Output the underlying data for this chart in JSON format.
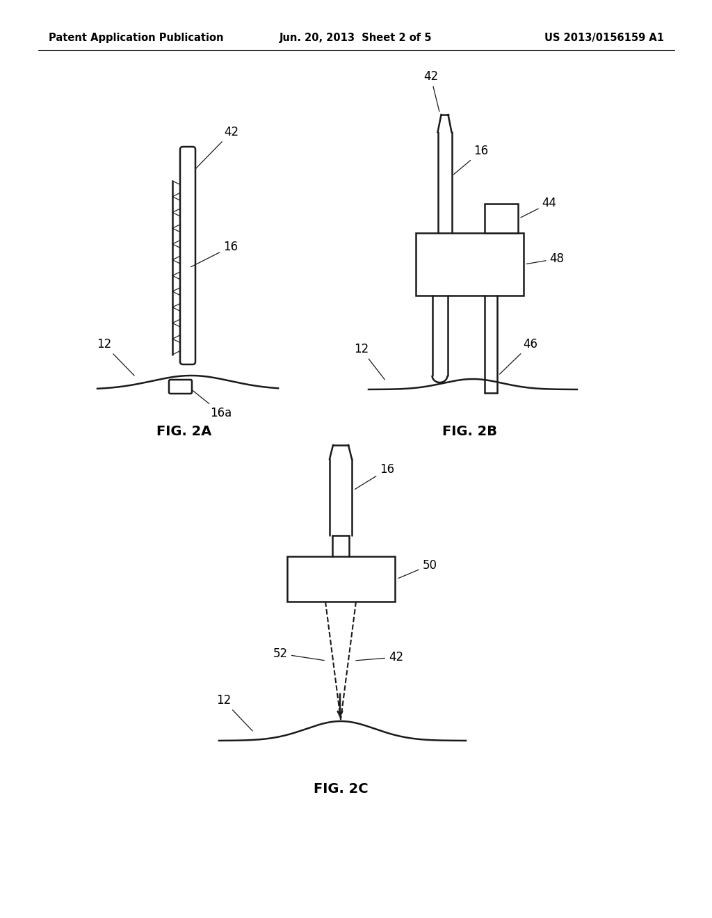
{
  "background_color": "#ffffff",
  "header_left": "Patent Application Publication",
  "header_center": "Jun. 20, 2013  Sheet 2 of 5",
  "header_right": "US 2013/0156159 A1",
  "fig2a_label": "FIG. 2A",
  "fig2b_label": "FIG. 2B",
  "fig2c_label": "FIG. 2C",
  "line_color": "#1a1a1a",
  "line_width": 1.8,
  "label_fontsize": 12,
  "header_fontsize": 10.5,
  "fig_label_fontsize": 14
}
